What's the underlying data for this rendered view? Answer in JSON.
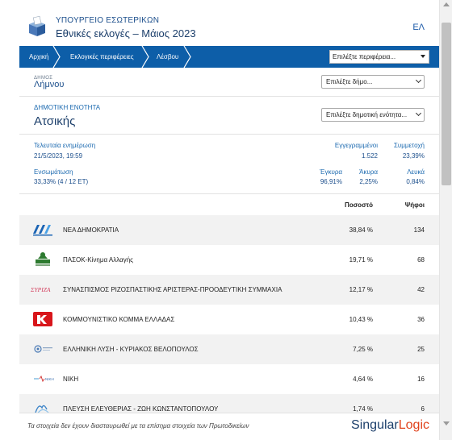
{
  "header": {
    "ministry": "ΥΠΟΥΡΓΕΙΟ ΕΣΩΤΕΡΙΚΩΝ",
    "title": "Εθνικές εκλογές – Μάιος 2023",
    "language": "ΕΛ"
  },
  "breadcrumb": {
    "items": [
      "Αρχική",
      "Εκλογικές περιφέρειες",
      "Λέσβου"
    ],
    "region_select": "Επιλέξτε περιφέρεια..."
  },
  "municipality": {
    "label": "ΔΗΜΟΣ",
    "name": "Λήμνου",
    "select": "Επιλέξτε δήμο..."
  },
  "unit": {
    "label": "ΔΗΜΟΤΙΚΗ ΕΝΟΤΗΤΑ",
    "name": "Ατσικής",
    "select": "Επιλέξτε δημοτική ενότητα..."
  },
  "stats": {
    "last_update_label": "Τελευταία ενημέρωση",
    "last_update_value": "21/5/2023, 19:59",
    "counted_label": "Ενσωμάτωση",
    "counted_value": "33,33% (4 / 12 ΕΤ)",
    "registered_label": "Εγγεγραμμένοι",
    "registered_value": "1.522",
    "turnout_label": "Συμμετοχή",
    "turnout_value": "23,39%",
    "valid_label": "Έγκυρα",
    "valid_value": "96,91%",
    "invalid_label": "Άκυρα",
    "invalid_value": "2,25%",
    "blank_label": "Λευκά",
    "blank_value": "0,84%"
  },
  "table": {
    "header_pct": "Ποσοστό",
    "header_votes": "Ψήφοι",
    "rows": [
      {
        "name": "ΝΕΑ ΔΗΜΟΚΡΑΤΙΑ",
        "pct": "38,84 %",
        "votes": "134",
        "logo": "nd-logo"
      },
      {
        "name": "ΠΑΣΟΚ-Κίνημα Αλλαγής",
        "pct": "19,71 %",
        "votes": "68",
        "logo": "pasok-logo"
      },
      {
        "name": "ΣΥΝΑΣΠΙΣΜΟΣ ΡΙΖΟΣΠΑΣΤΙΚΗΣ ΑΡΙΣΤΕΡΑΣ-ΠΡΟΟΔΕΥΤΙΚΗ ΣΥΜΜΑΧΙΑ",
        "pct": "12,17 %",
        "votes": "42",
        "logo": "syriza-logo"
      },
      {
        "name": "ΚΟΜΜΟΥΝΙΣΤΙΚΟ ΚΟΜΜΑ ΕΛΛΑΔΑΣ",
        "pct": "10,43 %",
        "votes": "36",
        "logo": "kke-logo"
      },
      {
        "name": "ΕΛΛΗΝΙΚΗ ΛΥΣΗ - ΚΥΡΙΑΚΟΣ ΒΕΛΟΠΟΥΛΟΣ",
        "pct": "7,25 %",
        "votes": "25",
        "logo": "elliniki-lysi-logo"
      },
      {
        "name": "ΝΙΚΗ",
        "pct": "4,64 %",
        "votes": "16",
        "logo": "niki-logo"
      },
      {
        "name": "ΠΛΕΥΣΗ ΕΛΕΥΘΕΡΙΑΣ - ΖΩΗ ΚΩΝΣΤΑΝΤΟΠΟΥΛΟΥ",
        "pct": "1,74 %",
        "votes": "6",
        "logo": "plefsi-logo"
      }
    ]
  },
  "footer": {
    "disclaimer": "Τα στοιχεία δεν έχουν διασταυρωθεί με τα επίσημα στοιχεία των Πρωτοδικείων",
    "brand_a": "Singular",
    "brand_b": "Logic"
  },
  "colors": {
    "primary": "#0d5ea8",
    "title": "#1c3f6b",
    "row_alt": "#f2f2f2",
    "brand_accent": "#e0421b"
  }
}
